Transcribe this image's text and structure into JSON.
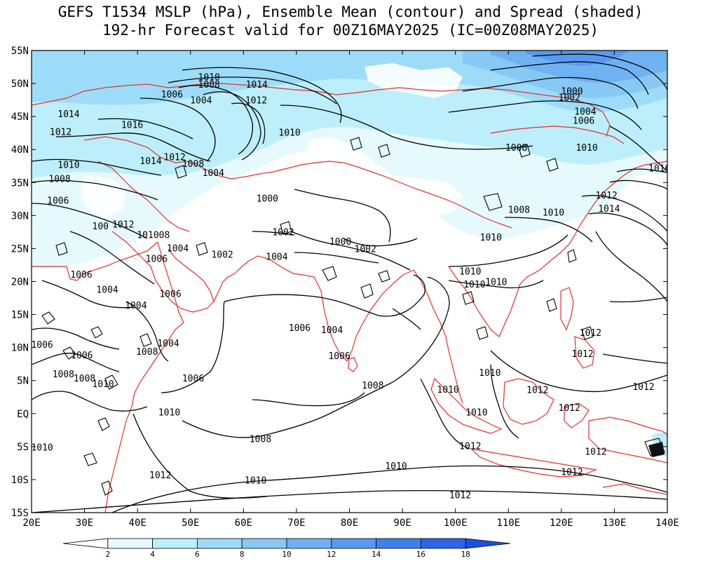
{
  "title": {
    "line1": "GEFS T1534 MSLP (hPa), Ensemble Mean (contour) and Spread (shaded)",
    "line2": "192-hr Forecast valid for 00Z16MAY2025 (IC=00Z08MAY2025)"
  },
  "map": {
    "lon_range": [
      20,
      140
    ],
    "lat_range": [
      -15,
      55
    ],
    "lon_ticks": [
      "20E",
      "30E",
      "40E",
      "50E",
      "60E",
      "70E",
      "80E",
      "90E",
      "100E",
      "110E",
      "120E",
      "130E",
      "140E"
    ],
    "lat_ticks": [
      "55N",
      "50N",
      "45N",
      "40N",
      "35N",
      "30N",
      "25N",
      "20N",
      "15N",
      "10N",
      "5N",
      "EQ",
      "5S",
      "10S",
      "15S"
    ],
    "colors": {
      "coastline": "#e03030",
      "contour": "#000000",
      "frame": "#000000"
    }
  },
  "contour_labels": [
    {
      "text": "1010",
      "lon": 53.5,
      "lat": 50.7
    },
    {
      "text": "1008",
      "lon": 53.5,
      "lat": 49.6
    },
    {
      "text": "1014",
      "lon": 62.5,
      "lat": 49.6
    },
    {
      "text": "1006",
      "lon": 46.5,
      "lat": 48.1
    },
    {
      "text": "1004",
      "lon": 52,
      "lat": 47.2
    },
    {
      "text": "1012",
      "lon": 62.4,
      "lat": 47.2
    },
    {
      "text": "1014",
      "lon": 27,
      "lat": 45.1
    },
    {
      "text": "1016",
      "lon": 39,
      "lat": 43.5
    },
    {
      "text": "1012",
      "lon": 25.5,
      "lat": 42.4
    },
    {
      "text": "1010",
      "lon": 68.7,
      "lat": 42.3
    },
    {
      "text": "1014",
      "lon": 42.5,
      "lat": 38.0
    },
    {
      "text": "1012",
      "lon": 47,
      "lat": 38.6
    },
    {
      "text": "1008",
      "lon": 50.5,
      "lat": 37.6
    },
    {
      "text": "1010",
      "lon": 27,
      "lat": 37.4
    },
    {
      "text": "1004",
      "lon": 54.3,
      "lat": 36.2
    },
    {
      "text": "1008",
      "lon": 25.3,
      "lat": 35.3
    },
    {
      "text": "1000",
      "lon": 64.5,
      "lat": 32.3
    },
    {
      "text": "1006",
      "lon": 25,
      "lat": 32.0
    },
    {
      "text": "1012",
      "lon": 37.3,
      "lat": 28.4
    },
    {
      "text": "100",
      "lon": 33,
      "lat": 28.1
    },
    {
      "text": "101008",
      "lon": 43,
      "lat": 26.8
    },
    {
      "text": "1002",
      "lon": 67.5,
      "lat": 27.2
    },
    {
      "text": "1000",
      "lon": 78.3,
      "lat": 25.8
    },
    {
      "text": "1002",
      "lon": 83,
      "lat": 24.7
    },
    {
      "text": "1004",
      "lon": 47.6,
      "lat": 24.8
    },
    {
      "text": "1002",
      "lon": 56,
      "lat": 23.8
    },
    {
      "text": "1004",
      "lon": 66.3,
      "lat": 23.5
    },
    {
      "text": "1006",
      "lon": 43.6,
      "lat": 23.2
    },
    {
      "text": "1006",
      "lon": 29.4,
      "lat": 20.8
    },
    {
      "text": "1004",
      "lon": 34.3,
      "lat": 18.5
    },
    {
      "text": "1006",
      "lon": 46.2,
      "lat": 17.9
    },
    {
      "text": "1004",
      "lon": 39.7,
      "lat": 16.1
    },
    {
      "text": "1006",
      "lon": 70.6,
      "lat": 12.7
    },
    {
      "text": "1004",
      "lon": 76.7,
      "lat": 12.4
    },
    {
      "text": "1004",
      "lon": 45.8,
      "lat": 10.4
    },
    {
      "text": "1006",
      "lon": 22,
      "lat": 10.2
    },
    {
      "text": "1008",
      "lon": 41.8,
      "lat": 9.1
    },
    {
      "text": "1006",
      "lon": 29.5,
      "lat": 8.6
    },
    {
      "text": "1006",
      "lon": 78.1,
      "lat": 8.5
    },
    {
      "text": "1008",
      "lon": 26,
      "lat": 5.7
    },
    {
      "text": "1008",
      "lon": 30,
      "lat": 5.1
    },
    {
      "text": "1006",
      "lon": 50.5,
      "lat": 5.1
    },
    {
      "text": "1010",
      "lon": 33.5,
      "lat": 4.2
    },
    {
      "text": "1008",
      "lon": 84.4,
      "lat": 4.0
    },
    {
      "text": "1010",
      "lon": 46,
      "lat": -0.1
    },
    {
      "text": "1008",
      "lon": 63.2,
      "lat": -4.1
    },
    {
      "text": "1010",
      "lon": 22,
      "lat": -5.4
    },
    {
      "text": "1010",
      "lon": 88.8,
      "lat": -8.2
    },
    {
      "text": "1010",
      "lon": 62.3,
      "lat": -10.4
    },
    {
      "text": "1012",
      "lon": 44.3,
      "lat": -9.6
    },
    {
      "text": "1012",
      "lon": 100.9,
      "lat": -12.6
    },
    {
      "text": "1012",
      "lon": 102.8,
      "lat": -5.2
    },
    {
      "text": "1010",
      "lon": 104,
      "lat": -0.1
    },
    {
      "text": "1010",
      "lon": 98.6,
      "lat": 3.4
    },
    {
      "text": "1010",
      "lon": 106.5,
      "lat": 5.9
    },
    {
      "text": "1012",
      "lon": 115.5,
      "lat": 3.3
    },
    {
      "text": "1012",
      "lon": 121.5,
      "lat": 0.6
    },
    {
      "text": "1012",
      "lon": 126.5,
      "lat": -6.0
    },
    {
      "text": "1012",
      "lon": 122,
      "lat": -9.1
    },
    {
      "text": "1012",
      "lon": 135.5,
      "lat": 3.8
    },
    {
      "text": "1012",
      "lon": 124,
      "lat": 8.8
    },
    {
      "text": "1012",
      "lon": 125.5,
      "lat": 12.0
    },
    {
      "text": "1010",
      "lon": 102.8,
      "lat": 21.3
    },
    {
      "text": "1010",
      "lon": 103.6,
      "lat": 19.3
    },
    {
      "text": "1010",
      "lon": 107.7,
      "lat": 19.7
    },
    {
      "text": "1010",
      "lon": 106.7,
      "lat": 26.4
    },
    {
      "text": "1010",
      "lon": 118.5,
      "lat": 30.2
    },
    {
      "text": "1008",
      "lon": 112,
      "lat": 30.6
    },
    {
      "text": "1008",
      "lon": 111.5,
      "lat": 40.0
    },
    {
      "text": "1010",
      "lon": 124.8,
      "lat": 40.0
    },
    {
      "text": "1014",
      "lon": 129,
      "lat": 30.8
    },
    {
      "text": "1012",
      "lon": 128.5,
      "lat": 32.8
    },
    {
      "text": "1016",
      "lon": 138.5,
      "lat": 36.9
    },
    {
      "text": "1006",
      "lon": 124.2,
      "lat": 44.1
    },
    {
      "text": "1004",
      "lon": 124.5,
      "lat": 45.5
    },
    {
      "text": "1002",
      "lon": 121.5,
      "lat": 47.6
    },
    {
      "text": "1000",
      "lon": 122,
      "lat": 48.6
    }
  ],
  "colorbar": {
    "labels": [
      "2",
      "4",
      "6",
      "8",
      "10",
      "12",
      "14",
      "16",
      "18"
    ],
    "colors": [
      "#ffffff",
      "#e6fafd",
      "#bdeefb",
      "#9ddcf8",
      "#88c8f5",
      "#6fb2f2",
      "#589af0",
      "#4080ec",
      "#2a66e6",
      "#1a52e0"
    ]
  }
}
